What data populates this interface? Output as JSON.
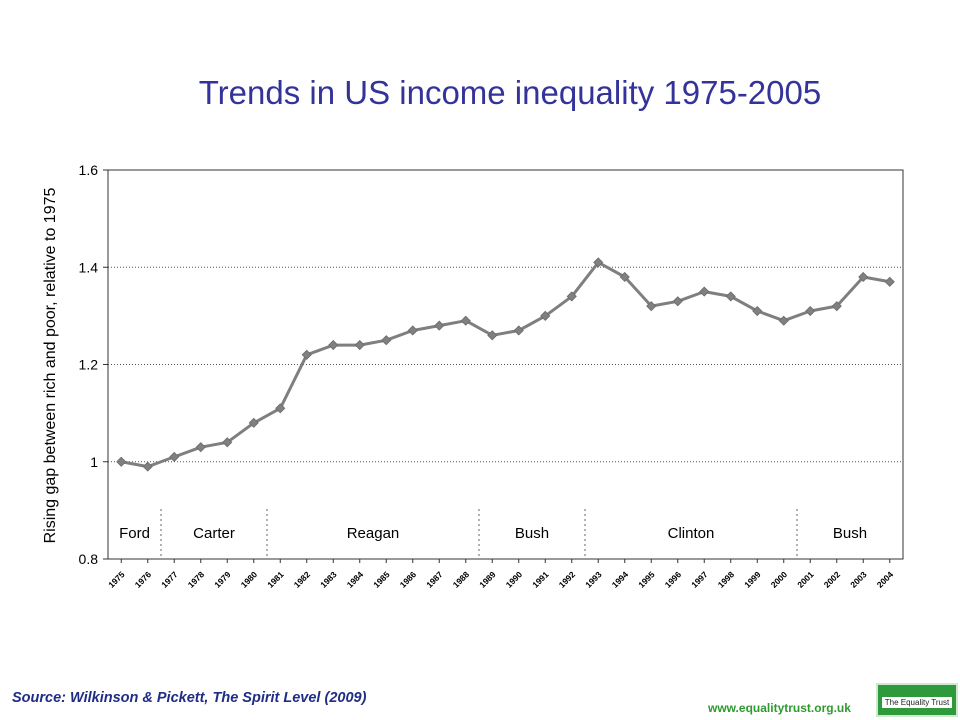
{
  "slide": {
    "title": "Trends in US income inequality 1975-2005",
    "source": "Source: Wilkinson & Pickett, The Spirit Level (2009)",
    "website": "www.equalitytrust.org.uk",
    "logo_text": "The Equality Trust",
    "title_color": "#333399",
    "website_color": "#2e9a2e",
    "logo_color": "#2f9a3c"
  },
  "chart_data": {
    "type": "line",
    "ylabel": "Rising gap between rich and poor, relative to 1975",
    "ylim": [
      0.8,
      1.6
    ],
    "yticks": [
      0.8,
      1,
      1.2,
      1.4,
      1.6
    ],
    "ytick_labels": [
      "0.8",
      "1",
      "1.2",
      "1.4",
      "1.6"
    ],
    "grid": "horizontal dotted",
    "line_color": "#7f7f7f",
    "categories": [
      "1975",
      "1976",
      "1977",
      "1978",
      "1979",
      "1980",
      "1981",
      "1982",
      "1983",
      "1984",
      "1985",
      "1986",
      "1987",
      "1988",
      "1989",
      "1990",
      "1991",
      "1992",
      "1993",
      "1994",
      "1995",
      "1996",
      "1997",
      "1998",
      "1999",
      "2000",
      "2001",
      "2002",
      "2003",
      "2004"
    ],
    "values": [
      1.0,
      0.99,
      1.01,
      1.03,
      1.04,
      1.08,
      1.11,
      1.22,
      1.24,
      1.24,
      1.25,
      1.27,
      1.28,
      1.29,
      1.26,
      1.27,
      1.3,
      1.34,
      1.41,
      1.38,
      1.32,
      1.33,
      1.35,
      1.34,
      1.31,
      1.29,
      1.31,
      1.32,
      1.38,
      1.37
    ],
    "presidents": [
      {
        "name": "Ford",
        "start": "1975",
        "end": "1976"
      },
      {
        "name": "Carter",
        "start": "1977",
        "end": "1980"
      },
      {
        "name": "Reagan",
        "start": "1981",
        "end": "1988"
      },
      {
        "name": "Bush",
        "start": "1989",
        "end": "1992"
      },
      {
        "name": "Clinton",
        "start": "1993",
        "end": "2000"
      },
      {
        "name": "Bush",
        "start": "2001",
        "end": "2004"
      }
    ]
  }
}
